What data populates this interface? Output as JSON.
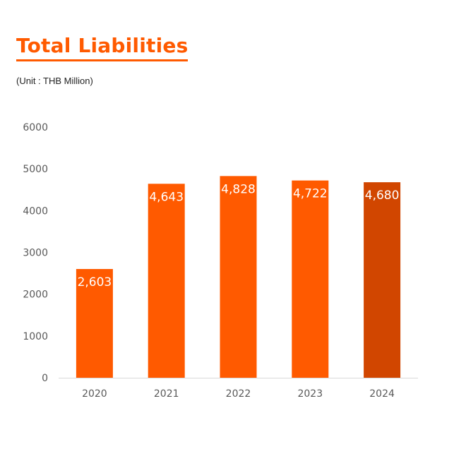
{
  "chart_data": {
    "type": "bar",
    "title": "Total Liabilities",
    "subtitle": "(Unit : THB Million)",
    "categories": [
      "2020",
      "2021",
      "2022",
      "2023",
      "2024"
    ],
    "values": [
      2603,
      4643,
      4828,
      4722,
      4680
    ],
    "data_labels": [
      "2,603",
      "4,643",
      "4,828",
      "4,722",
      "4,680"
    ],
    "ylim": [
      0,
      6000
    ],
    "yticks": [
      0,
      1000,
      2000,
      3000,
      4000,
      5000,
      6000
    ],
    "ytick_labels": [
      "0",
      "1000",
      "2000",
      "3000",
      "4000",
      "5000",
      "6000"
    ],
    "xlabel": "",
    "ylabel": "",
    "grid": false,
    "legend": "none",
    "colors": {
      "bar": "#ff5a00",
      "highlight_bar": "#d14600",
      "highlight_index": 4,
      "title": "#ff5a00",
      "axis_line": "#d9d9d9",
      "tick_text": "#595959",
      "data_label_text": "#ffffff"
    }
  }
}
